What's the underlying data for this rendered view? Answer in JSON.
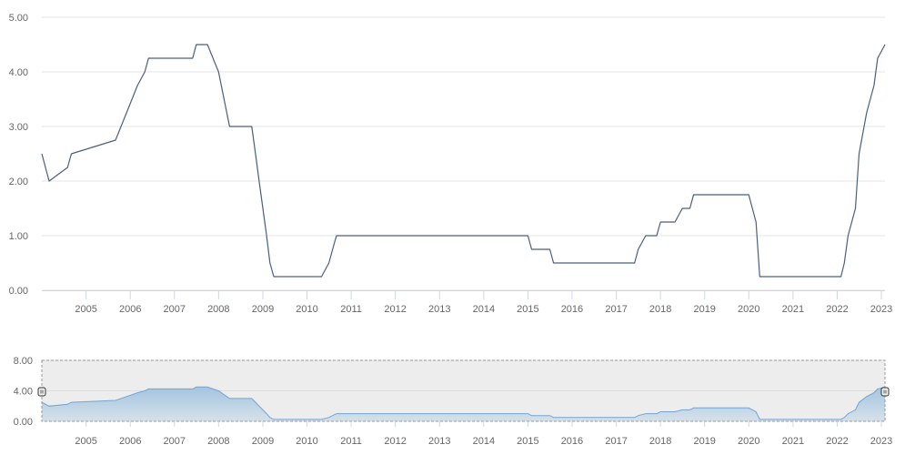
{
  "chart_data": [
    {
      "type": "line",
      "title": "",
      "xlabel": "",
      "ylabel": "",
      "ylim": [
        0,
        5
      ],
      "xlim": [
        "2004-01-01",
        "2023-01-31"
      ],
      "x_ticks": [
        "2005",
        "2006",
        "2007",
        "2008",
        "2009",
        "2010",
        "2011",
        "2012",
        "2013",
        "2014",
        "2015",
        "2016",
        "2017",
        "2018",
        "2019",
        "2020",
        "2021",
        "2022",
        "2023"
      ],
      "y_ticks": [
        "0.00",
        "1.00",
        "2.00",
        "3.00",
        "4.00",
        "5.00"
      ],
      "grid": true,
      "legend": "none",
      "line_color": "#4a5f7e",
      "series": [
        {
          "points": [
            [
              "2004-01-01",
              2.5
            ],
            [
              "2004-03-01",
              2.0
            ],
            [
              "2004-08-01",
              2.25
            ],
            [
              "2004-09-01",
              2.5
            ],
            [
              "2005-09-01",
              2.75
            ],
            [
              "2005-12-01",
              3.25
            ],
            [
              "2006-03-01",
              3.75
            ],
            [
              "2006-05-01",
              4.0
            ],
            [
              "2006-06-01",
              4.25
            ],
            [
              "2007-06-01",
              4.25
            ],
            [
              "2007-07-01",
              4.5
            ],
            [
              "2007-10-01",
              4.5
            ],
            [
              "2008-01-01",
              4.0
            ],
            [
              "2008-04-01",
              3.0
            ],
            [
              "2008-10-01",
              3.0
            ],
            [
              "2008-11-01",
              2.5
            ],
            [
              "2008-12-01",
              2.0
            ],
            [
              "2009-01-01",
              1.5
            ],
            [
              "2009-02-01",
              1.0
            ],
            [
              "2009-03-01",
              0.5
            ],
            [
              "2009-04-01",
              0.25
            ],
            [
              "2010-05-01",
              0.25
            ],
            [
              "2010-07-01",
              0.5
            ],
            [
              "2010-08-01",
              0.75
            ],
            [
              "2010-09-01",
              1.0
            ],
            [
              "2015-01-01",
              1.0
            ],
            [
              "2015-02-01",
              0.75
            ],
            [
              "2015-07-01",
              0.75
            ],
            [
              "2015-08-01",
              0.5
            ],
            [
              "2017-06-01",
              0.5
            ],
            [
              "2017-07-01",
              0.75
            ],
            [
              "2017-09-01",
              1.0
            ],
            [
              "2017-12-01",
              1.0
            ],
            [
              "2018-01-01",
              1.25
            ],
            [
              "2018-05-01",
              1.25
            ],
            [
              "2018-07-01",
              1.5
            ],
            [
              "2018-09-01",
              1.5
            ],
            [
              "2018-10-01",
              1.75
            ],
            [
              "2020-01-01",
              1.75
            ],
            [
              "2020-03-01",
              1.25
            ],
            [
              "2020-04-01",
              0.25
            ],
            [
              "2022-02-01",
              0.25
            ],
            [
              "2022-03-01",
              0.5
            ],
            [
              "2022-04-01",
              1.0
            ],
            [
              "2022-06-01",
              1.5
            ],
            [
              "2022-07-01",
              2.5
            ],
            [
              "2022-09-01",
              3.25
            ],
            [
              "2022-11-01",
              3.75
            ],
            [
              "2022-12-01",
              4.25
            ],
            [
              "2023-01-31",
              4.5
            ]
          ]
        }
      ]
    },
    {
      "type": "area",
      "title": "",
      "xlabel": "",
      "ylabel": "",
      "ylim": [
        0,
        8
      ],
      "xlim": [
        "2004-01-01",
        "2023-01-31"
      ],
      "x_ticks": [
        "2005",
        "2006",
        "2007",
        "2008",
        "2009",
        "2010",
        "2011",
        "2012",
        "2013",
        "2014",
        "2015",
        "2016",
        "2017",
        "2018",
        "2019",
        "2020",
        "2021",
        "2022",
        "2023"
      ],
      "y_ticks": [
        "0.00",
        "4.00",
        "8.00"
      ],
      "grid": true,
      "legend": "none",
      "line_color": "#4a90d9",
      "fill_color": "#8fc1ee",
      "navigator_window": [
        "2004-01-01",
        "2023-01-31"
      ],
      "same_series_as_main_chart": true
    }
  ]
}
